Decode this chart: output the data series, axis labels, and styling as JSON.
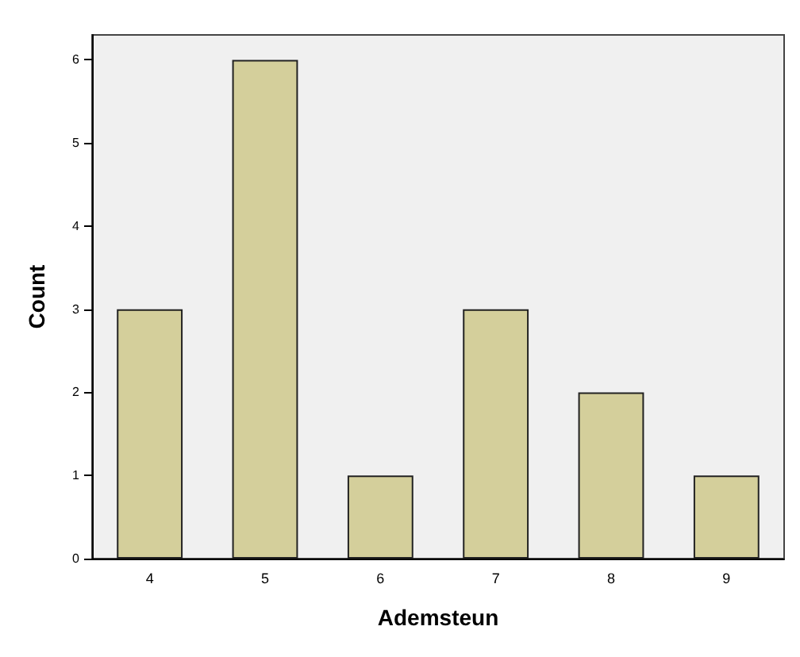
{
  "chart_data": {
    "type": "bar",
    "xlabel": "Ademsteun",
    "ylabel": "Count",
    "categories": [
      "4",
      "5",
      "6",
      "7",
      "8",
      "9"
    ],
    "values": [
      3,
      6,
      1,
      3,
      2,
      1
    ],
    "color": "#d4cf9b",
    "ylim": [
      0,
      6.3
    ],
    "yticks": [
      0,
      1,
      2,
      3,
      4,
      5,
      6
    ],
    "grid": false
  }
}
